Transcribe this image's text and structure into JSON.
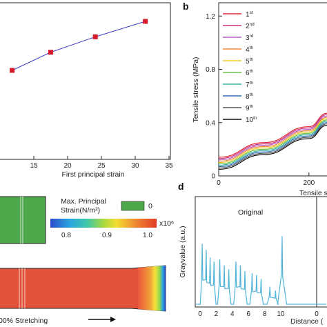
{
  "panels": {
    "b": "b",
    "d": "d"
  },
  "colors": {
    "panel_a_line": "#3d3dbf",
    "panel_a_marker": "#d21a2a",
    "trace_d": "#4fb3d9",
    "green_block": "#4ca84a"
  },
  "chart_data": [
    {
      "id": "panel-a",
      "type": "line",
      "title": "",
      "xlabel": "First principal strain",
      "ylabel": "",
      "xlim": [
        10,
        35
      ],
      "x_ticks": [
        15,
        20,
        25,
        30,
        35
      ],
      "x": [
        11.8,
        17.5,
        24.1,
        31.5
      ],
      "y": [
        0.27,
        0.54,
        0.77,
        1.0
      ],
      "marker": "square",
      "grid": false
    },
    {
      "id": "panel-b",
      "type": "line",
      "title": "",
      "xlabel": "Tensile s",
      "ylabel": "Tensile stress (MPa)",
      "ylim": [
        0,
        1.3
      ],
      "y_ticks": [
        "0",
        "0.4",
        "0.8",
        "1.2"
      ],
      "x_ticks": [
        "0",
        "200"
      ],
      "grid": false,
      "legend_position": "top-right",
      "series": [
        {
          "name": "1",
          "sup": "st",
          "color": "#e02a35",
          "x": [
            0,
            100,
            200,
            240
          ],
          "y": [
            0.14,
            0.25,
            0.37,
            0.47
          ]
        },
        {
          "name": "2",
          "sup": "nd",
          "color": "#c8307a",
          "x": [
            0,
            100,
            200,
            240
          ],
          "y": [
            0.13,
            0.24,
            0.36,
            0.46
          ]
        },
        {
          "name": "3",
          "sup": "rd",
          "color": "#b65cc7",
          "x": [
            0,
            100,
            200,
            240
          ],
          "y": [
            0.12,
            0.23,
            0.35,
            0.45
          ]
        },
        {
          "name": "4",
          "sup": "th",
          "color": "#f08a3c",
          "x": [
            0,
            100,
            200,
            240
          ],
          "y": [
            0.11,
            0.22,
            0.34,
            0.44
          ]
        },
        {
          "name": "5",
          "sup": "th",
          "color": "#f2cc2c",
          "x": [
            0,
            100,
            200,
            240
          ],
          "y": [
            0.1,
            0.21,
            0.33,
            0.43
          ]
        },
        {
          "name": "6",
          "sup": "th",
          "color": "#6cc04a",
          "x": [
            0,
            100,
            200,
            240
          ],
          "y": [
            0.09,
            0.2,
            0.32,
            0.42
          ]
        },
        {
          "name": "7",
          "sup": "th",
          "color": "#3ab0a8",
          "x": [
            0,
            100,
            200,
            240
          ],
          "y": [
            0.08,
            0.19,
            0.31,
            0.41
          ]
        },
        {
          "name": "8",
          "sup": "th",
          "color": "#2f6fb8",
          "x": [
            0,
            100,
            200,
            240
          ],
          "y": [
            0.07,
            0.18,
            0.3,
            0.4
          ]
        },
        {
          "name": "9",
          "sup": "th",
          "color": "#555555",
          "x": [
            0,
            100,
            200,
            240
          ],
          "y": [
            0.06,
            0.17,
            0.29,
            0.39
          ]
        },
        {
          "name": "10",
          "sup": "th",
          "color": "#111111",
          "x": [
            0,
            100,
            200,
            240
          ],
          "y": [
            0.05,
            0.16,
            0.28,
            0.38
          ]
        }
      ]
    },
    {
      "id": "panel-c",
      "type": "heatmap",
      "colorbar_title": "Max. Principal\nStrain(N/m²)",
      "colorbar_ticks": [
        "0.8",
        "0.9",
        "1.0"
      ],
      "colorbar_exponent": "x10⁶",
      "zero_label": "0",
      "stretch_label": "00% Stretching"
    },
    {
      "id": "panel-d",
      "type": "line",
      "title": "Original",
      "xlabel": "Distance (",
      "ylabel": "Grayvalue (a.u.)",
      "x_ticks": [
        "0",
        "2",
        "4",
        "6",
        "8",
        "10",
        "0"
      ],
      "grid": false,
      "peaks": [
        {
          "x": 0.6,
          "heights": [
            0.62,
            0.56,
            0.48,
            0.44
          ]
        },
        {
          "x": 1.8,
          "heights": [
            0.46,
            0.4,
            0.36
          ]
        },
        {
          "x": 3.0,
          "heights": [
            0.44,
            0.4,
            0.34
          ]
        },
        {
          "x": 4.2,
          "heights": [
            0.32,
            0.3,
            0.26
          ]
        },
        {
          "x": 5.4,
          "heights": [
            0.18,
            0.14
          ]
        },
        {
          "x": 6.1,
          "heights": [
            0.7
          ]
        }
      ]
    }
  ]
}
